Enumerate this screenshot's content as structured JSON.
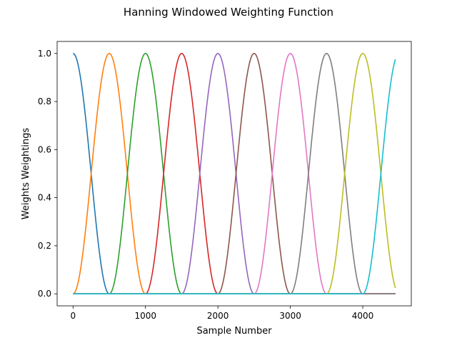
{
  "chart_data": {
    "type": "line",
    "title": "Hanning Windowed Weighting Function",
    "xlabel": "Sample Number",
    "ylabel": "Weights Weightings",
    "xlim": [
      -220,
      4670
    ],
    "ylim": [
      -0.05,
      1.05
    ],
    "xticks": [
      0,
      1000,
      2000,
      3000,
      4000
    ],
    "yticks": [
      0.0,
      0.2,
      0.4,
      0.6,
      0.8,
      1.0
    ],
    "xtick_labels": [
      "0",
      "1000",
      "2000",
      "3000",
      "4000"
    ],
    "ytick_labels": [
      "0.0",
      "0.2",
      "0.4",
      "0.6",
      "0.8",
      "1.0"
    ],
    "grid": false,
    "legend": "none",
    "x_range": [
      0,
      4450
    ],
    "window_width": 1000,
    "series": [
      {
        "color": "#1f77b4",
        "center": 0
      },
      {
        "color": "#ff7f0e",
        "center": 500
      },
      {
        "color": "#2ca02c",
        "center": 1000
      },
      {
        "color": "#d62728",
        "center": 1500
      },
      {
        "color": "#9467bd",
        "center": 2000
      },
      {
        "color": "#8c564b",
        "center": 2500
      },
      {
        "color": "#e377c2",
        "center": 3000
      },
      {
        "color": "#7f7f7f",
        "center": 3500
      },
      {
        "color": "#bcbd22",
        "center": 4000
      },
      {
        "color": "#17becf",
        "center": 4500
      }
    ]
  }
}
